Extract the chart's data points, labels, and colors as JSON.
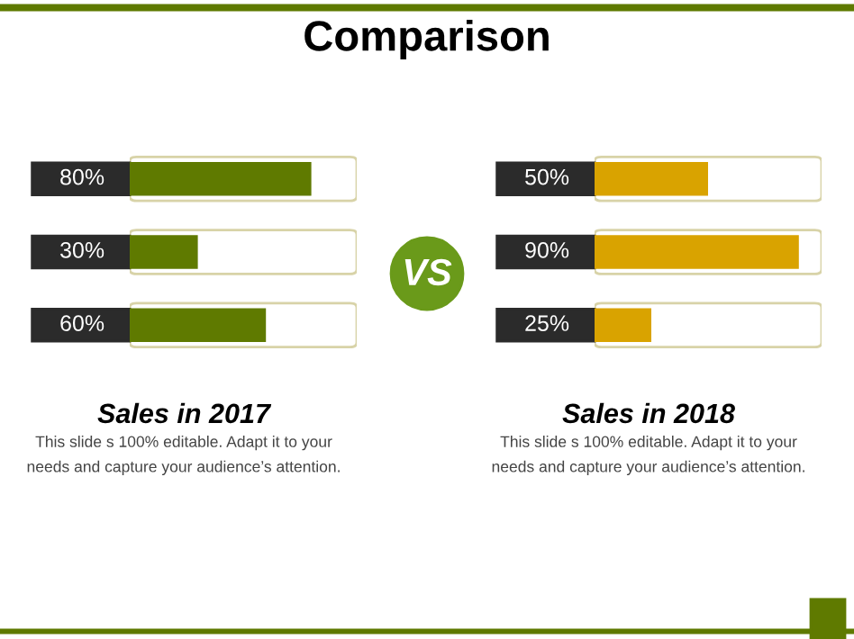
{
  "chart_data": [
    {
      "type": "other",
      "title": "Comparison",
      "annotations": [
        "VS"
      ]
    },
    {
      "type": "bar",
      "orientation": "horizontal",
      "title": "Sales in 2017",
      "categories": [
        null,
        null,
        null
      ],
      "values": [
        80,
        30,
        60
      ],
      "color": "#5f7a00",
      "value_labels": [
        "80%",
        "30%",
        "60%"
      ],
      "xlim": [
        0,
        100
      ],
      "tick_labels": false,
      "annotations": [
        "This slide s 100% editable. Adapt it to your needs and capture your audience’s attention."
      ]
    },
    {
      "type": "bar",
      "orientation": "horizontal",
      "title": "Sales in 2018",
      "categories": [
        null,
        null,
        null
      ],
      "values": [
        50,
        90,
        25
      ],
      "color": "#d9a300",
      "value_labels": [
        "50%",
        "90%",
        "25%"
      ],
      "xlim": [
        0,
        100
      ],
      "tick_labels": false,
      "annotations": [
        "This slide s 100% editable. Adapt it to your needs and capture your audience’s attention."
      ]
    }
  ]
}
